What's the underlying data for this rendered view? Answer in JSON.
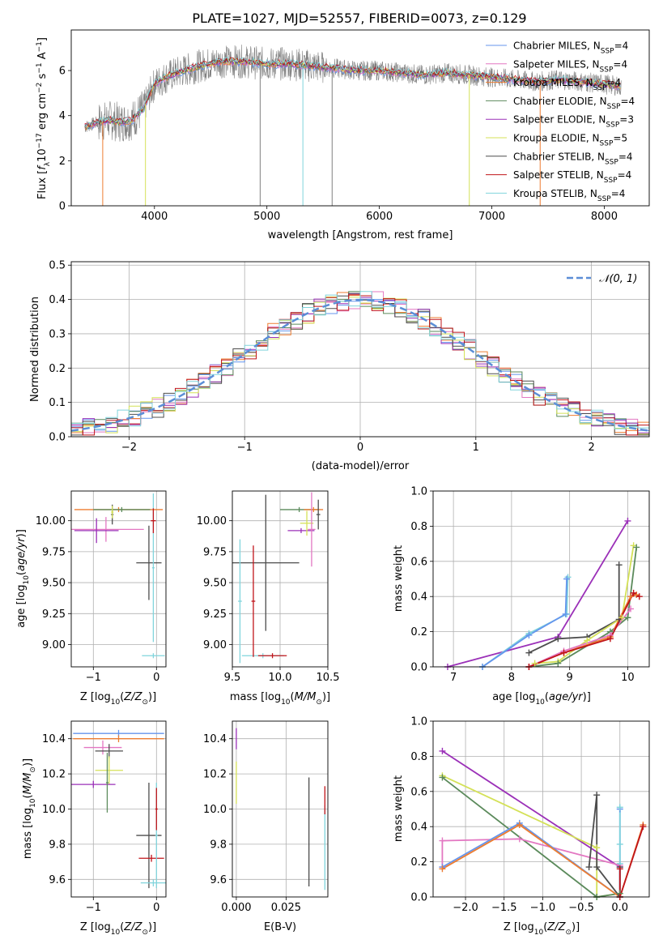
{
  "figure_title": "PLATE=1027, MJD=52557, FIBERID=0073, z=0.129",
  "colors": {
    "Chabrier MILES": "#6495ed",
    "Salpeter MILES": "#e377c2",
    "Kroupa MILES": "#ed7d31",
    "Chabrier ELODIE": "#5b8a5b",
    "Salpeter ELODIE": "#9b30b8",
    "Kroupa ELODIE": "#d4e157",
    "Chabrier STELIB": "#4d4d4d",
    "Salpeter STELIB": "#c0141a",
    "Kroupa STELIB": "#80d4dc",
    "data": "#808080",
    "normal": "#5b8ed6"
  },
  "chart_data": [
    {
      "id": "spectrum",
      "type": "line",
      "xlabel": "wavelength [Angstrom, rest frame]",
      "ylabel": "Flux [fλ10⁻¹⁷ erg cm⁻² s⁻¹ A⁻¹]",
      "xlim": [
        3260,
        8400
      ],
      "ylim": [
        0,
        7.8
      ],
      "xticks": [
        4000,
        5000,
        6000,
        7000,
        8000
      ],
      "yticks": [
        0,
        2,
        4,
        6
      ],
      "legend_position": "top-right",
      "legend": [
        "Chabrier MILES, N_SSP=4",
        "Salpeter MILES, N_SSP=4",
        "Kroupa MILES, N_SSP=4",
        "Chabrier ELODIE, N_SSP=4",
        "Salpeter ELODIE, N_SSP=3",
        "Kroupa ELODIE, N_SSP=5",
        "Chabrier STELIB, N_SSP=4",
        "Salpeter STELIB, N_SSP=4",
        "Kroupa STELIB, N_SSP=4"
      ],
      "continuum_points": {
        "x": [
          3380,
          3500,
          3600,
          3700,
          3800,
          3900,
          4000,
          4100,
          4200,
          4400,
          4600,
          4800,
          5000,
          5200,
          5400,
          5600,
          5800,
          6000,
          6200,
          6400,
          6600,
          6800,
          7000,
          7200,
          7400,
          7600,
          7800,
          8000,
          8150
        ],
        "y": [
          3.5,
          3.7,
          3.8,
          3.7,
          3.8,
          4.3,
          5.4,
          5.7,
          5.9,
          6.2,
          6.4,
          6.4,
          6.3,
          6.3,
          6.2,
          6.1,
          6.0,
          6.0,
          5.9,
          5.8,
          5.9,
          5.8,
          5.7,
          5.6,
          5.5,
          5.6,
          5.5,
          5.4,
          5.3
        ]
      }
    },
    {
      "id": "residuals",
      "type": "histogram",
      "xlabel": "(data-model)/error",
      "ylabel": "Normed distribution",
      "xlim": [
        -2.5,
        2.5
      ],
      "ylim": [
        0,
        0.51
      ],
      "xticks": [
        -2,
        -1,
        0,
        1,
        2
      ],
      "yticks": [
        0.0,
        0.1,
        0.2,
        0.3,
        0.4,
        0.5
      ],
      "legend": [
        "𝒩(0, 1)"
      ],
      "legend_position": "top-right",
      "grid": true
    },
    {
      "id": "age-vs-Z",
      "type": "errorbar",
      "xlabel": "Z [log₁₀(Z/Z⊙)]",
      "ylabel": "age  [log₁₀(age/yr)]",
      "xlim": [
        -1.35,
        0.15
      ],
      "ylim": [
        8.82,
        10.24
      ],
      "xticks": [
        -1,
        0
      ],
      "yticks": [
        9.0,
        9.25,
        9.5,
        9.75,
        10.0
      ],
      "grid": true,
      "points": [
        {
          "series": "Kroupa MILES",
          "x": -0.6,
          "y": 10.09,
          "xerr": 0.7,
          "yerr": 0.02
        },
        {
          "series": "Chabrier ELODIE",
          "x": -0.55,
          "y": 10.09,
          "xerr": 0.45,
          "yerr": 0.02
        },
        {
          "series": "Salpeter MILES",
          "x": -0.8,
          "y": 9.93,
          "xerr": 0.6,
          "yerr": 0.1
        },
        {
          "series": "Salpeter ELODIE",
          "x": -0.95,
          "y": 9.92,
          "xerr": 0.35,
          "yerr": 0.1
        },
        {
          "series": "Chabrier STELIB",
          "x": -0.12,
          "y": 9.66,
          "xerr": 0.2,
          "yerr": 0.3
        },
        {
          "series": "Kroupa STELIB",
          "x": -0.05,
          "y": 9.62,
          "xerr": 0.02,
          "yerr": 0.6
        },
        {
          "series": "Kroupa STELIB",
          "x": -0.05,
          "y": 8.91,
          "xerr": 0.18,
          "yerr": 0.02
        },
        {
          "series": "Chabrier STELIB",
          "x": -0.7,
          "y": 10.05,
          "xerr": 0.02,
          "yerr": 0.08
        },
        {
          "series": "Salpeter STELIB",
          "x": -0.05,
          "y": 10.0,
          "xerr": 0.04,
          "yerr": 0.1
        },
        {
          "series": "Kroupa ELODIE",
          "x": -0.7,
          "y": 10.07,
          "xerr": 0.02,
          "yerr": 0.05
        }
      ]
    },
    {
      "id": "age-vs-mass",
      "type": "errorbar",
      "xlabel": "mass [log₁₀(M/M⊙)]",
      "ylabel": "",
      "xlim": [
        9.5,
        10.5
      ],
      "ylim": [
        8.82,
        10.24
      ],
      "xticks": [
        9.5,
        10.0,
        10.5
      ],
      "yticks": [
        9.0,
        9.25,
        9.5,
        9.75,
        10.0
      ],
      "grid": true,
      "points": [
        {
          "series": "Chabrier ELODIE",
          "x": 10.2,
          "y": 10.09,
          "xerr": 0.2,
          "yerr": 0.02
        },
        {
          "series": "Kroupa MILES",
          "x": 10.35,
          "y": 10.09,
          "xerr": 0.1,
          "yerr": 0.02
        },
        {
          "series": "Salpeter ELODIE",
          "x": 10.22,
          "y": 9.92,
          "xerr": 0.14,
          "yerr": 0.02
        },
        {
          "series": "Kroupa ELODIE",
          "x": 10.28,
          "y": 9.98,
          "xerr": 0.07,
          "yerr": 0.1
        },
        {
          "series": "Salpeter MILES",
          "x": 10.33,
          "y": 9.93,
          "xerr": 0.04,
          "yerr": 0.3
        },
        {
          "series": "Chabrier STELIB",
          "x": 9.85,
          "y": 9.66,
          "xerr": 0.35,
          "yerr": 0.55
        },
        {
          "series": "Kroupa STELIB",
          "x": 9.82,
          "y": 8.91,
          "xerr": 0.22,
          "yerr": 0.02
        },
        {
          "series": "Kroupa STELIB",
          "x": 9.58,
          "y": 9.35,
          "xerr": 0.02,
          "yerr": 0.5
        },
        {
          "series": "Salpeter STELIB",
          "x": 9.72,
          "y": 9.35,
          "xerr": 0.02,
          "yerr": 0.45
        },
        {
          "series": "Salpeter STELIB",
          "x": 9.92,
          "y": 8.91,
          "xerr": 0.15,
          "yerr": 0.02
        },
        {
          "series": "Chabrier STELIB",
          "x": 10.4,
          "y": 10.05,
          "xerr": 0.02,
          "yerr": 0.12
        }
      ]
    },
    {
      "id": "weight-vs-age",
      "type": "line",
      "xlabel": "age  [log₁₀(age/yr)]",
      "ylabel": "mass weight",
      "xlim": [
        6.65,
        10.37
      ],
      "ylim": [
        0,
        1.0
      ],
      "xticks": [
        7,
        8,
        9,
        10
      ],
      "yticks": [
        0.0,
        0.2,
        0.4,
        0.6,
        0.8,
        1.0
      ],
      "grid": true,
      "series": [
        {
          "name": "Salpeter ELODIE",
          "x": [
            6.9,
            8.8,
            10.0
          ],
          "y": [
            0.0,
            0.17,
            0.83
          ]
        },
        {
          "name": "Kroupa STELIB",
          "x": [
            7.5,
            8.3,
            8.95,
            8.97
          ],
          "y": [
            0.0,
            0.19,
            0.3,
            0.51
          ]
        },
        {
          "name": "Chabrier MILES",
          "x": [
            7.5,
            8.3,
            8.93,
            8.95
          ],
          "y": [
            0.0,
            0.18,
            0.3,
            0.5
          ]
        },
        {
          "name": "Chabrier STELIB",
          "x": [
            8.3,
            8.8,
            9.3,
            9.85,
            9.85
          ],
          "y": [
            0.08,
            0.16,
            0.17,
            0.27,
            0.58
          ]
        },
        {
          "name": "Kroupa ELODIE",
          "x": [
            8.4,
            8.8,
            9.3,
            9.9,
            10.1
          ],
          "y": [
            0.02,
            0.03,
            0.15,
            0.28,
            0.69
          ]
        },
        {
          "name": "Chabrier ELODIE",
          "x": [
            8.3,
            8.8,
            9.7,
            10.0,
            10.15
          ],
          "y": [
            0.0,
            0.02,
            0.2,
            0.28,
            0.68
          ]
        },
        {
          "name": "Kroupa MILES",
          "x": [
            8.3,
            8.9,
            9.7,
            10.05,
            10.15
          ],
          "y": [
            0.0,
            0.08,
            0.17,
            0.4,
            0.41
          ]
        },
        {
          "name": "Salpeter MILES",
          "x": [
            8.3,
            8.9,
            9.7,
            10.05
          ],
          "y": [
            0.0,
            0.09,
            0.18,
            0.33
          ]
        },
        {
          "name": "Salpeter STELIB",
          "x": [
            8.3,
            8.9,
            9.7,
            10.1,
            10.2
          ],
          "y": [
            0.0,
            0.08,
            0.16,
            0.42,
            0.4
          ]
        }
      ]
    },
    {
      "id": "mass-vs-Z",
      "type": "errorbar",
      "xlabel": "Z [log₁₀(Z/Z⊙)]",
      "ylabel": "mass [log₁₀(M/M⊙)]",
      "xlim": [
        -1.35,
        0.15
      ],
      "ylim": [
        9.5,
        10.5
      ],
      "xticks": [
        -1,
        0
      ],
      "yticks": [
        9.6,
        9.8,
        10.0,
        10.2,
        10.4
      ],
      "grid": true,
      "points": [
        {
          "series": "Chabrier MILES",
          "x": -0.6,
          "y": 10.43,
          "xerr": 0.72,
          "yerr": 0.02
        },
        {
          "series": "Kroupa MILES",
          "x": -0.6,
          "y": 10.4,
          "xerr": 0.72,
          "yerr": 0.02
        },
        {
          "series": "Salpeter MILES",
          "x": -0.85,
          "y": 10.35,
          "xerr": 0.3,
          "yerr": 0.04
        },
        {
          "series": "Chabrier STELIB",
          "x": -0.75,
          "y": 10.33,
          "xerr": 0.22,
          "yerr": 0.04
        },
        {
          "series": "Kroupa ELODIE",
          "x": -0.75,
          "y": 10.22,
          "xerr": 0.22,
          "yerr": 0.08
        },
        {
          "series": "Salpeter ELODIE",
          "x": -1.0,
          "y": 10.14,
          "xerr": 0.35,
          "yerr": 0.02
        },
        {
          "series": "Chabrier ELODIE",
          "x": -0.78,
          "y": 10.15,
          "xerr": 0.02,
          "yerr": 0.17
        },
        {
          "series": "Chabrier STELIB",
          "x": -0.12,
          "y": 9.85,
          "xerr": 0.2,
          "yerr": 0.3
        },
        {
          "series": "Salpeter STELIB",
          "x": -0.08,
          "y": 9.72,
          "xerr": 0.2,
          "yerr": 0.02
        },
        {
          "series": "Kroupa STELIB",
          "x": -0.05,
          "y": 9.58,
          "xerr": 0.2,
          "yerr": 0.02
        },
        {
          "series": "Kroupa STELIB",
          "x": 0.0,
          "y": 9.85,
          "xerr": 0.02,
          "yerr": 0.3
        },
        {
          "series": "Salpeter STELIB",
          "x": 0.0,
          "y": 10.0,
          "xerr": 0.02,
          "yerr": 0.12
        }
      ]
    },
    {
      "id": "mass-vs-ebv",
      "type": "errorbar",
      "xlabel": "E(B-V)",
      "ylabel": "",
      "xlim": [
        -0.002,
        0.046
      ],
      "ylim": [
        9.5,
        10.5
      ],
      "xticks": [
        0.0,
        0.025
      ],
      "xticklabels": [
        "0.000",
        "0.025"
      ],
      "yticks": [
        9.6,
        9.8,
        10.0,
        10.2,
        10.4
      ],
      "grid": true,
      "points": [
        {
          "series": "Salpeter ELODIE",
          "x": 0.0,
          "y": 10.4,
          "xerr": 0.0,
          "yerr": 0.06
        },
        {
          "series": "Kroupa ELODIE",
          "x": 0.0,
          "y": 10.15,
          "xerr": 0.0,
          "yerr": 0.12
        },
        {
          "series": "Chabrier STELIB",
          "x": 0.0365,
          "y": 9.87,
          "xerr": 0.0,
          "yerr": 0.31
        },
        {
          "series": "Kroupa STELIB",
          "x": 0.0445,
          "y": 9.78,
          "xerr": 0.0,
          "yerr": 0.24
        },
        {
          "series": "Salpeter STELIB",
          "x": 0.0445,
          "y": 10.05,
          "xerr": 0.0,
          "yerr": 0.08
        }
      ]
    },
    {
      "id": "weight-vs-Z",
      "type": "line",
      "xlabel": "Z [log₁₀(Z/Z⊙)]",
      "ylabel": "mass weight",
      "xlim": [
        -2.42,
        0.38
      ],
      "ylim": [
        0,
        1.0
      ],
      "xticks": [
        -2.0,
        -1.5,
        -1.0,
        -0.5,
        0.0
      ],
      "xticklabels": [
        "−2.0",
        "−1.5",
        "−1.0",
        "−0.5",
        "0.0"
      ],
      "yticks": [
        0.0,
        0.2,
        0.4,
        0.6,
        0.8,
        1.0
      ],
      "grid": true,
      "series": [
        {
          "name": "Salpeter ELODIE",
          "x": [
            -2.3,
            0.0,
            0.0
          ],
          "y": [
            0.83,
            0.17,
            0.0
          ]
        },
        {
          "name": "Kroupa ELODIE",
          "x": [
            -2.3,
            -0.3,
            -0.3,
            0.0
          ],
          "y": [
            0.69,
            0.28,
            0.0,
            0.02
          ]
        },
        {
          "name": "Chabrier ELODIE",
          "x": [
            -2.3,
            -0.3,
            -0.3,
            0.0
          ],
          "y": [
            0.68,
            0.0,
            0.0,
            0.02
          ]
        },
        {
          "name": "Salpeter MILES",
          "x": [
            -2.3,
            -2.3,
            -1.3,
            0.0,
            0.0
          ],
          "y": [
            0.17,
            0.32,
            0.33,
            0.18,
            0.0
          ]
        },
        {
          "name": "Chabrier MILES",
          "x": [
            -2.3,
            -1.3,
            0.0,
            0.0
          ],
          "y": [
            0.17,
            0.42,
            0.0,
            0.5
          ]
        },
        {
          "name": "Kroupa MILES",
          "x": [
            -2.3,
            -1.3,
            0.0,
            0.3
          ],
          "y": [
            0.16,
            0.41,
            0.0,
            0.41
          ]
        },
        {
          "name": "Chabrier STELIB",
          "x": [
            -0.4,
            -0.3,
            -0.3,
            0.0,
            0.0
          ],
          "y": [
            0.17,
            0.58,
            0.17,
            0.0,
            0.17
          ]
        },
        {
          "name": "Kroupa STELIB",
          "x": [
            0.0,
            0.0,
            0.0,
            0.0
          ],
          "y": [
            0.51,
            0.3,
            0.19,
            0.0
          ]
        },
        {
          "name": "Salpeter STELIB",
          "x": [
            0.0,
            0.0,
            0.3
          ],
          "y": [
            0.16,
            0.0,
            0.4
          ]
        }
      ]
    }
  ]
}
